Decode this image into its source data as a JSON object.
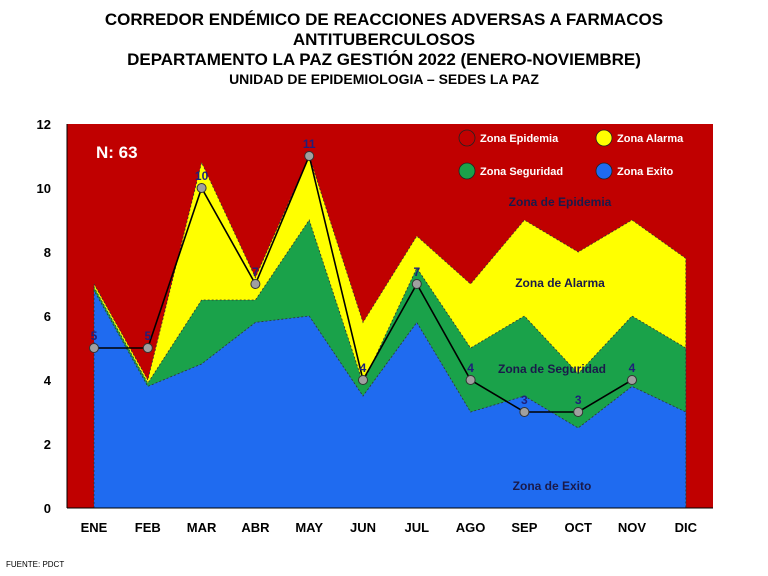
{
  "titles": {
    "line1": "CORREDOR ENDÉMICO DE REACCIONES ADVERSAS  A FARMACOS",
    "line2": "ANTITUBERCULOSOS",
    "line3": "DEPARTAMENTO  LA PAZ GESTIÓN 2022 (ENERO-NOVIEMBRE)",
    "line4": "UNIDAD DE EPIDEMIOLOGIA – SEDES LA PAZ"
  },
  "footer": "FUENTE:  PDCT",
  "chart_data": {
    "type": "area",
    "categories": [
      "ENE",
      "FEB",
      "MAR",
      "ABR",
      "MAY",
      "JUN",
      "JUL",
      "AGO",
      "SEP",
      "OCT",
      "NOV",
      "DIC"
    ],
    "ylim": [
      0,
      12
    ],
    "yticks": [
      "0",
      "2",
      "4",
      "6",
      "8",
      "10",
      "12"
    ],
    "zones": [
      {
        "name": "Zona Exito",
        "values": [
          6.8,
          3.8,
          4.5,
          5.8,
          6.0,
          3.5,
          5.8,
          3.0,
          3.5,
          2.5,
          3.8,
          3.0
        ],
        "color": "#1f6bf0"
      },
      {
        "name": "Zona Seguridad",
        "values": [
          6.9,
          3.9,
          6.5,
          6.5,
          9.0,
          3.9,
          7.5,
          5.0,
          6.0,
          4.2,
          6.0,
          5.0
        ],
        "color": "#1aa24a"
      },
      {
        "name": "Zona Alarma",
        "values": [
          7.0,
          4.0,
          10.8,
          7.2,
          11.0,
          5.8,
          8.5,
          7.0,
          9.0,
          8.0,
          9.0,
          7.8
        ],
        "color": "#ffff00"
      },
      {
        "name": "Zona Epidemia",
        "color": "#c00000"
      }
    ],
    "series": [
      {
        "name": "2022",
        "values": [
          5,
          5,
          10,
          7,
          11,
          4,
          7,
          4,
          3,
          3,
          4,
          null
        ],
        "color": "#000000"
      }
    ],
    "data_labels": [
      "5",
      "5",
      "10",
      "7",
      "11",
      "4",
      "7",
      "4",
      "3",
      "3",
      "4"
    ],
    "n_label": "N: 63",
    "zone_labels": [
      "Zona de Epidemia",
      "Zona de Alarma",
      "Zona de Seguridad",
      "Zona de Exito"
    ],
    "legend": [
      "Zona Epidemia",
      "Zona Alarma",
      "Zona Seguridad",
      "Zona Exito"
    ],
    "legend_position": "top-right"
  }
}
